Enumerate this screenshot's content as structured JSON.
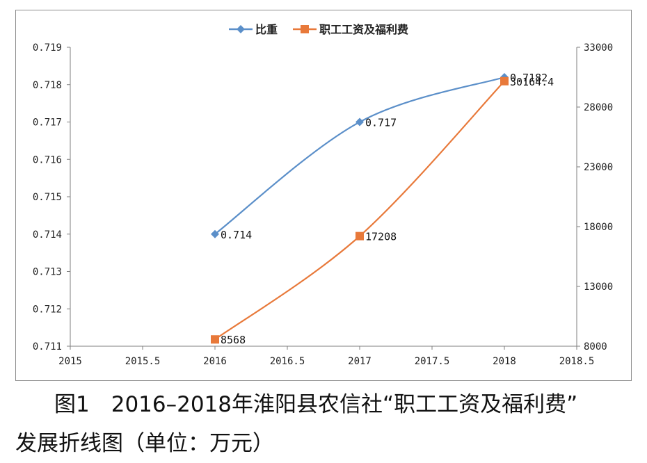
{
  "chart_data": {
    "type": "scatter-smooth-line",
    "x_axis": {
      "min": 2015,
      "max": 2018.5,
      "ticks": [
        "2015",
        "2015.5",
        "2016",
        "2016.5",
        "2017",
        "2017.5",
        "2018",
        "2018.5"
      ]
    },
    "y_axis_left": {
      "min": 0.711,
      "max": 0.719,
      "ticks": [
        "0.711",
        "0.712",
        "0.713",
        "0.714",
        "0.715",
        "0.716",
        "0.717",
        "0.718",
        "0.719"
      ]
    },
    "y_axis_right": {
      "min": 8000,
      "max": 33000,
      "ticks": [
        "8000",
        "13000",
        "18000",
        "23000",
        "28000",
        "33000"
      ]
    },
    "series": [
      {
        "name": "比重",
        "axis": "left",
        "color": "#5b8fc9",
        "marker": "diamond",
        "x": [
          2016,
          2017,
          2018
        ],
        "y": [
          0.714,
          0.717,
          0.7182
        ],
        "labels": [
          "0.714",
          "0.717",
          "0.7182"
        ]
      },
      {
        "name": "职工工资及福利费",
        "axis": "right",
        "color": "#e8793a",
        "marker": "square",
        "x": [
          2016,
          2017,
          2018
        ],
        "y": [
          8568,
          17208,
          30164.4
        ],
        "labels": [
          "8568",
          "17208",
          "30164.4"
        ]
      }
    ],
    "legend_position": "top-center",
    "grid": false
  },
  "caption": {
    "line1": "图1　2016–2018年淮阳县农信社“职工工资及福利费”",
    "line2": "发展折线图（单位：万元）"
  }
}
